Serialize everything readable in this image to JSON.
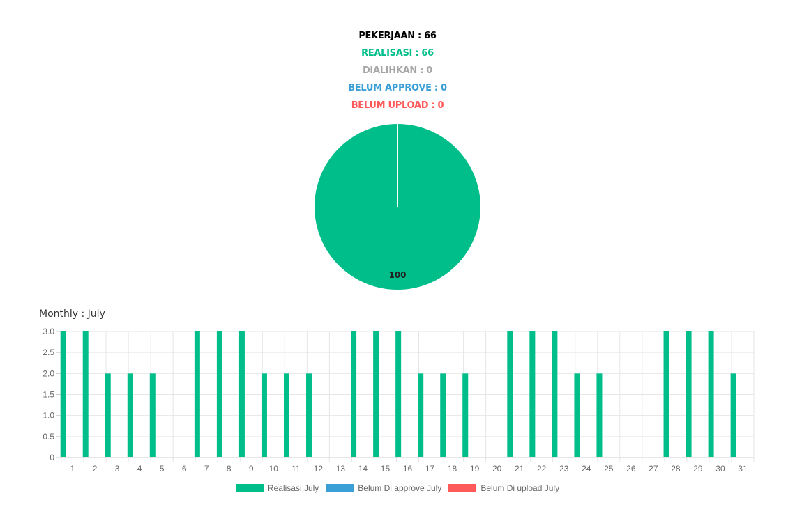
{
  "summary": {
    "lines": [
      {
        "text": "PEKERJAAN : 66",
        "color": "#000000"
      },
      {
        "text": "REALISASI : 66",
        "color": "#00be8a"
      },
      {
        "text": "DIALIHKAN : 0",
        "color": "#a6a6a6"
      },
      {
        "text": "BELUM APPROVE : 0",
        "color": "#3a9fd6"
      },
      {
        "text": "BELUM UPLOAD : 0",
        "color": "#ff5a5a"
      }
    ]
  },
  "monthly_title": "Monthly : July",
  "legend": [
    {
      "label": "Realisasi July",
      "color": "#00be8a"
    },
    {
      "label": "Belum Di approve July",
      "color": "#3a9fd6"
    },
    {
      "label": "Belum Di upload July",
      "color": "#ff5a5a"
    }
  ],
  "chart_data": [
    {
      "type": "pie",
      "labels": [
        "REALISASI",
        "DIALIHKAN",
        "BELUM APPROVE",
        "BELUM UPLOAD"
      ],
      "values": [
        100,
        0,
        0,
        0
      ],
      "colors": [
        "#00be8a",
        "#a6a6a6",
        "#3a9fd6",
        "#ff5a5a"
      ],
      "data_labels": [
        "100"
      ]
    },
    {
      "type": "bar",
      "title": "Monthly : July",
      "categories": [
        "1",
        "2",
        "3",
        "4",
        "5",
        "6",
        "7",
        "8",
        "9",
        "10",
        "11",
        "12",
        "13",
        "14",
        "15",
        "16",
        "17",
        "18",
        "19",
        "20",
        "21",
        "22",
        "23",
        "24",
        "25",
        "26",
        "27",
        "28",
        "29",
        "30",
        "31"
      ],
      "series": [
        {
          "name": "Realisasi July",
          "color": "#00be8a",
          "values": [
            3,
            3,
            2,
            2,
            2,
            0,
            3,
            3,
            3,
            2,
            2,
            2,
            0,
            3,
            3,
            3,
            2,
            2,
            2,
            0,
            3,
            3,
            3,
            2,
            2,
            0,
            0,
            3,
            3,
            3,
            2
          ]
        },
        {
          "name": "Belum Di approve July",
          "color": "#3a9fd6",
          "values": [
            0,
            0,
            0,
            0,
            0,
            0,
            0,
            0,
            0,
            0,
            0,
            0,
            0,
            0,
            0,
            0,
            0,
            0,
            0,
            0,
            0,
            0,
            0,
            0,
            0,
            0,
            0,
            0,
            0,
            0,
            0
          ]
        },
        {
          "name": "Belum Di upload July",
          "color": "#ff5a5a",
          "values": [
            0,
            0,
            0,
            0,
            0,
            0,
            0,
            0,
            0,
            0,
            0,
            0,
            0,
            0,
            0,
            0,
            0,
            0,
            0,
            0,
            0,
            0,
            0,
            0,
            0,
            0,
            0,
            0,
            0,
            0,
            0
          ]
        }
      ],
      "yticks": [
        "0",
        "0.5",
        "1.0",
        "1.5",
        "2.0",
        "2.5",
        "3.0"
      ],
      "ylim": [
        0,
        3
      ],
      "grid": true,
      "legend_position": "bottom"
    }
  ]
}
